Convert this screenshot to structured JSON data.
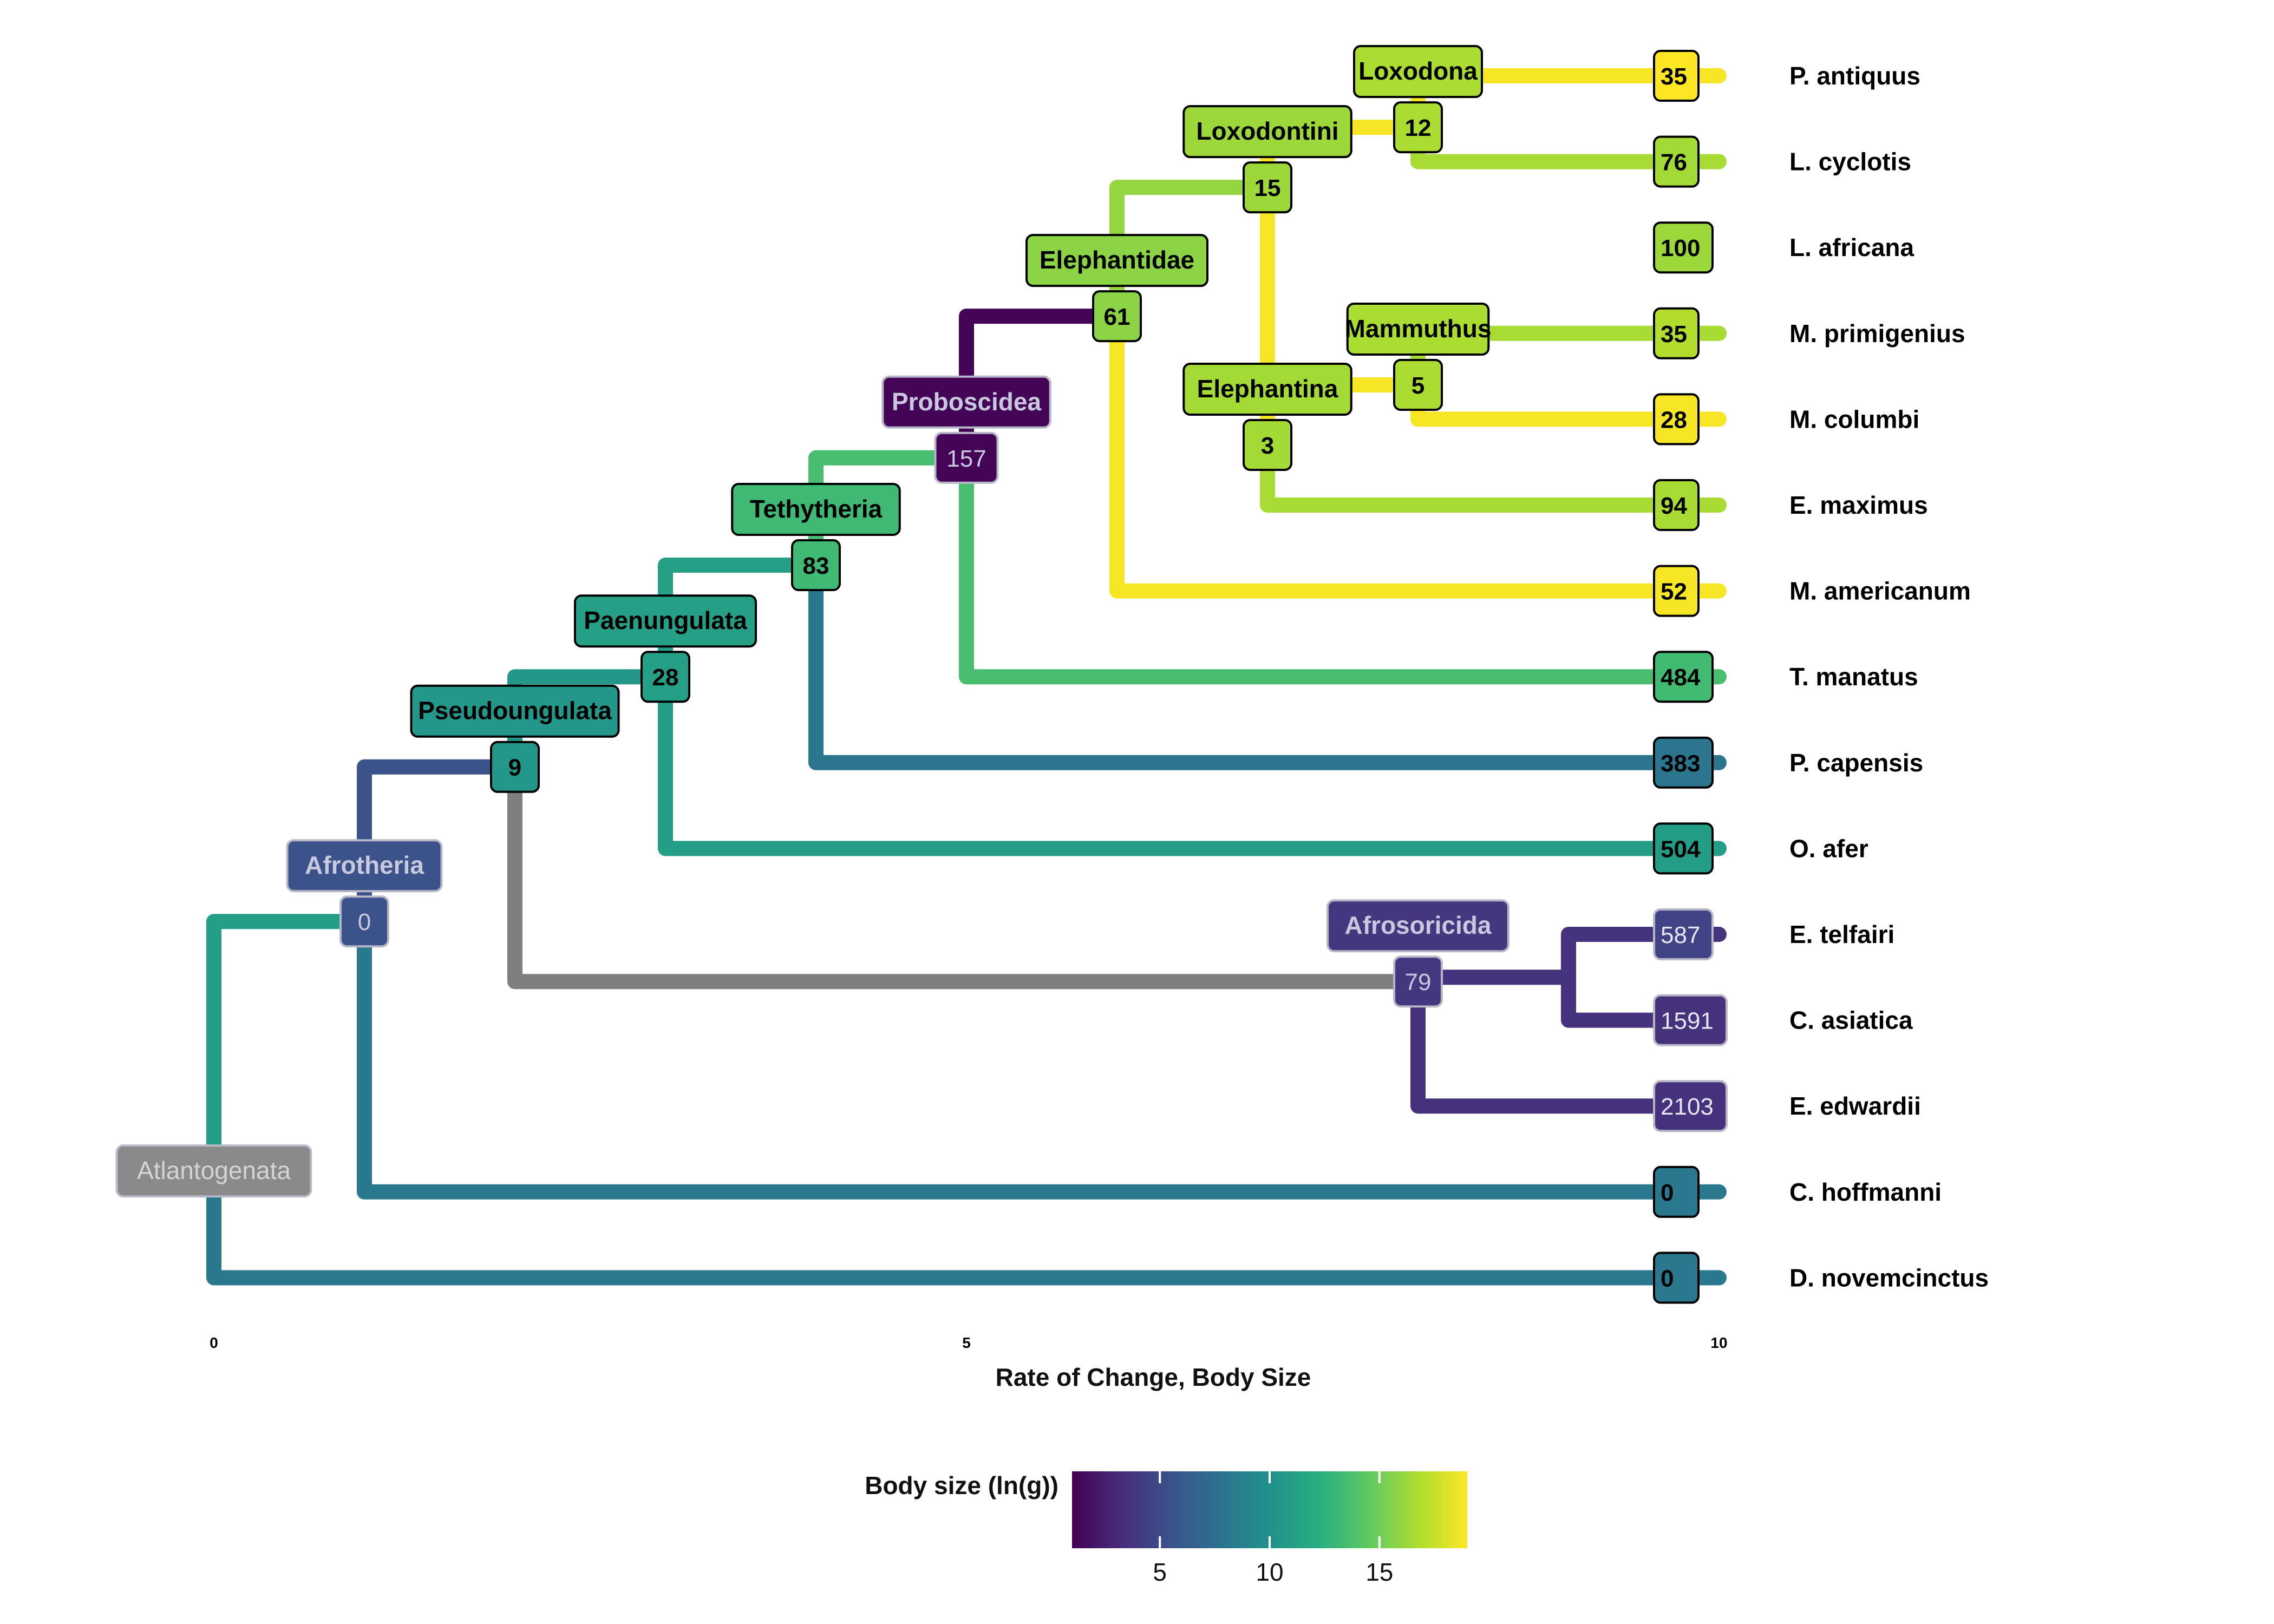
{
  "colors": {
    "viridis": [
      "#440154",
      "#472d7b",
      "#3b528b",
      "#2c728e",
      "#21918c",
      "#28ae80",
      "#5ec962",
      "#addc30",
      "#fde725"
    ],
    "na_branch": "#7f7f7f",
    "tip_label_text": "#000000",
    "label_border_dark": "#000000",
    "label_border_light": "#b7b7c8"
  },
  "axis": {
    "title": "Rate of Change, Body Size",
    "ticks": [
      "0",
      "5",
      "10"
    ]
  },
  "legend": {
    "title": "Body size (ln(g))",
    "ticks": [
      "5",
      "10",
      "15"
    ],
    "range": [
      1,
      19
    ]
  },
  "tree": {
    "note_units": "x = rate of change (0-10); row = vertical tip slot (0 = top); trait = body size ln(g)",
    "tips": [
      {
        "name": "P. antiquus",
        "row": 0,
        "x": 10,
        "rate_label": "35",
        "trait": 19
      },
      {
        "name": "L. cyclotis",
        "row": 1,
        "x": 10,
        "rate_label": "76",
        "trait": 16.5
      },
      {
        "name": "L. africana",
        "row": 2,
        "x": 10,
        "rate_label": "100",
        "trait": 16.3
      },
      {
        "name": "M. primigenius",
        "row": 3,
        "x": 10,
        "rate_label": "35",
        "trait": 16.9
      },
      {
        "name": "M. columbi",
        "row": 4,
        "x": 10,
        "rate_label": "28",
        "trait": 18.8
      },
      {
        "name": "E. maximus",
        "row": 5,
        "x": 10,
        "rate_label": "94",
        "trait": 16.6
      },
      {
        "name": "M. americanum",
        "row": 6,
        "x": 10,
        "rate_label": "52",
        "trait": 18.8
      },
      {
        "name": "T. manatus",
        "row": 7,
        "x": 10,
        "rate_label": "484",
        "trait": 13.3
      },
      {
        "name": "P. capensis",
        "row": 8,
        "x": 10,
        "rate_label": "383",
        "trait": 8.0
      },
      {
        "name": "O. afer",
        "row": 9,
        "x": 10,
        "rate_label": "504",
        "trait": 10.9
      },
      {
        "name": "E. telfairi",
        "row": 10,
        "x": 10,
        "rate_label": "587",
        "trait": 4.6
      },
      {
        "name": "C. asiatica",
        "row": 11,
        "x": 10,
        "rate_label": "1591",
        "trait": 3.5
      },
      {
        "name": "E. edwardii",
        "row": 12,
        "x": 10,
        "rate_label": "2103",
        "trait": 3.5
      },
      {
        "name": "C. hoffmanni",
        "row": 13,
        "x": 10,
        "rate_label": "0",
        "trait": 8.2
      },
      {
        "name": "D. novemcinctus",
        "row": 14,
        "x": 10,
        "rate_label": "0",
        "trait": 8.2
      }
    ],
    "nodes": [
      {
        "id": "atlantogenata",
        "name": "Atlantogenata",
        "rate_label": "",
        "x": 0,
        "row": 12.75,
        "trait": 11,
        "children": [
          "afrotheria",
          "D. novemcinctus"
        ],
        "grey": true
      },
      {
        "id": "afrotheria",
        "name": "Afrotheria",
        "rate_label": "0",
        "x": 1,
        "row": 9.85,
        "trait": 5.5,
        "children": [
          "pseudoungulata",
          "C. hoffmanni"
        ]
      },
      {
        "id": "pseudoungulata",
        "name": "Pseudoungulata",
        "rate_label": "9",
        "x": 2,
        "row": 8.05,
        "trait": 10.5,
        "children": [
          "paenungulata",
          "afrosoricida"
        ]
      },
      {
        "id": "paenungulata",
        "name": "Paenungulata",
        "rate_label": "28",
        "x": 3,
        "row": 7.0,
        "trait": 11.2,
        "children": [
          "tethytheria",
          "O. afer"
        ]
      },
      {
        "id": "tethytheria",
        "name": "Tethytheria",
        "rate_label": "83",
        "x": 4,
        "row": 5.7,
        "trait": 13.2,
        "children": [
          "proboscidea",
          "P. capensis"
        ]
      },
      {
        "id": "proboscidea",
        "name": "Proboscidea",
        "rate_label": "157",
        "x": 5,
        "row": 4.45,
        "trait": 1.2,
        "children": [
          "elephantidae",
          "T. manatus"
        ]
      },
      {
        "id": "elephantidae",
        "name": "Elephantidae",
        "rate_label": "61",
        "x": 6,
        "row": 2.8,
        "trait": 15.8,
        "children": [
          "loxodontini",
          "M. americanum"
        ]
      },
      {
        "id": "loxodontini",
        "name": "Loxodontini",
        "rate_label": "15",
        "x": 7,
        "row": 1.3,
        "trait": 16.3,
        "children": [
          "loxodona",
          "elephantina"
        ]
      },
      {
        "id": "loxodona",
        "name": "Loxodona",
        "rate_label": "12",
        "x": 8,
        "row": 0.6,
        "trait": 16.7,
        "children": [
          "P. antiquus",
          "L. cyclotis"
        ]
      },
      {
        "id": "elephantina",
        "name": "Elephantina",
        "rate_label": "3",
        "x": 7,
        "row": 4.3,
        "trait": 16.5,
        "children": [
          "mammuthus",
          "E. maximus"
        ],
        "label_x": 7
      },
      {
        "id": "mammuthus",
        "name": "Mammuthus",
        "rate_label": "5",
        "x": 8,
        "row": 3.6,
        "trait": 16.7,
        "children": [
          "M. primigenius",
          "M. columbi"
        ]
      },
      {
        "id": "afrosoricida",
        "name": "Afrosoricida",
        "rate_label": "79",
        "x": 8,
        "row": 10.55,
        "trait": 3.8,
        "children": [
          "tenrecinae",
          "E. edwardii"
        ]
      },
      {
        "id": "tenrecinae",
        "name": "",
        "rate_label": "",
        "x": 9,
        "row": 10.5,
        "trait": 3.6,
        "children": [
          "E. telfairi",
          "C. asiatica"
        ],
        "hidden_label": true
      }
    ],
    "branch_colors": {
      "atlantogenata>afrotheria": 11.0,
      "atlantogenata>D. novemcinctus": 8.2,
      "afrotheria>pseudoungulata": 5.5,
      "afrotheria>C. hoffmanni": 8.2,
      "pseudoungulata>paenungulata": 10.5,
      "pseudoungulata>afrosoricida": null,
      "paenungulata>tethytheria": 11.2,
      "paenungulata>O. afer": 11.0,
      "tethytheria>proboscidea": 13.6,
      "tethytheria>P. capensis": 8.0,
      "proboscidea>elephantidae": 1.2,
      "proboscidea>T. manatus": 13.6,
      "elephantidae>loxodontini": 16.0,
      "elephantidae>M. americanum": 18.8,
      "loxodontini>loxodona": 18.8,
      "loxodontini>elephantina": 18.8,
      "loxodona>P. antiquus": 18.8,
      "loxodona>L. cyclotis": 16.6,
      "loxodontini>L. africana": 16.3,
      "elephantina>mammuthus": 18.8,
      "elephantina>E. maximus": 16.6,
      "mammuthus>M. primigenius": 16.6,
      "mammuthus>M. columbi": 18.8,
      "afrosoricida>tenrecinae": 3.6,
      "afrosoricida>E. edwardii": 3.5,
      "tenrecinae>E. telfairi": 3.6,
      "tenrecinae>C. asiatica": 3.6
    }
  }
}
